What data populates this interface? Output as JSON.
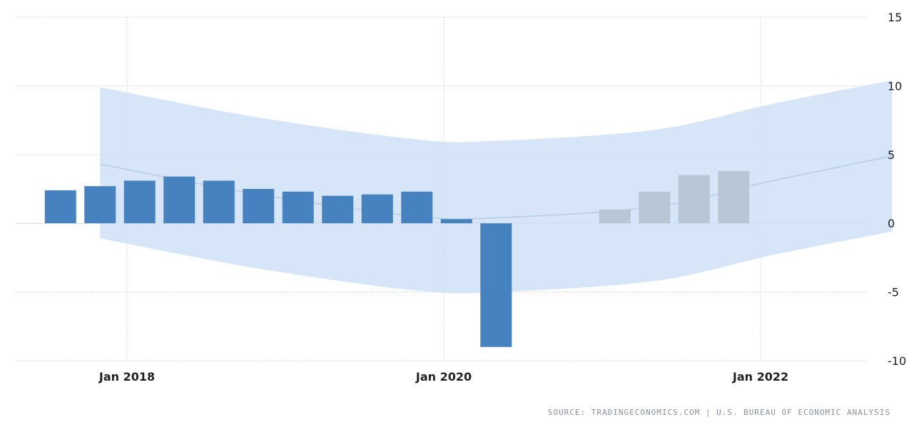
{
  "chart_data": {
    "type": "bar",
    "title": "",
    "xlabel": "",
    "ylabel": "",
    "ylim": [
      -10,
      15
    ],
    "yticks": [
      15,
      10,
      5,
      0,
      -5,
      -10
    ],
    "xticks": [
      "Jan 2018",
      "Jan 2020",
      "Jan 2022"
    ],
    "grid": true,
    "legend": "none",
    "series": [
      {
        "kind": "actual",
        "color": "#4682bf",
        "quarters": [
          "2017-Q3",
          "2017-Q4",
          "2018-Q1",
          "2018-Q2",
          "2018-Q3",
          "2018-Q4",
          "2019-Q1",
          "2019-Q2",
          "2019-Q3",
          "2019-Q4",
          "2020-Q1",
          "2020-Q2"
        ],
        "values": [
          2.4,
          2.7,
          3.1,
          3.4,
          3.1,
          2.5,
          2.3,
          2.0,
          2.1,
          2.3,
          0.3,
          -9.0
        ]
      },
      {
        "kind": "forecast",
        "color": "#b8c6d6",
        "quarters": [
          "2021-Q1",
          "2021-Q2",
          "2021-Q3",
          "2021-Q4"
        ],
        "values": [
          1.0,
          2.3,
          3.5,
          3.8
        ]
      }
    ],
    "band_color": "#cfe0f6",
    "band_upper": [
      [
        "2017-Q4",
        9.9
      ],
      [
        "2018-Q4",
        7.7
      ],
      [
        "2019-Q4",
        6.1
      ],
      [
        "2020-Q2",
        6.0
      ],
      [
        "2021-Q2",
        6.8
      ],
      [
        "2022-Q1",
        8.7
      ],
      [
        "2022-Q4",
        10.4
      ]
    ],
    "band_lower": [
      [
        "2017-Q4",
        -1.1
      ],
      [
        "2018-Q4",
        -3.3
      ],
      [
        "2019-Q4",
        -4.9
      ],
      [
        "2020-Q2",
        -5.0
      ],
      [
        "2021-Q2",
        -4.2
      ],
      [
        "2022-Q1",
        -2.3
      ],
      [
        "2022-Q4",
        -0.6
      ]
    ],
    "trend_line": [
      [
        "2017-Q4",
        4.3
      ],
      [
        "2018-Q4",
        2.1
      ],
      [
        "2019-Q4",
        0.5
      ],
      [
        "2020-Q2",
        0.4
      ],
      [
        "2021-Q2",
        1.2
      ],
      [
        "2022-Q1",
        3.1
      ],
      [
        "2022-Q4",
        4.9
      ]
    ],
    "source": "SOURCE: TRADINGECONOMICS.COM  |  U.S. BUREAU OF ECONOMIC ANALYSIS"
  }
}
